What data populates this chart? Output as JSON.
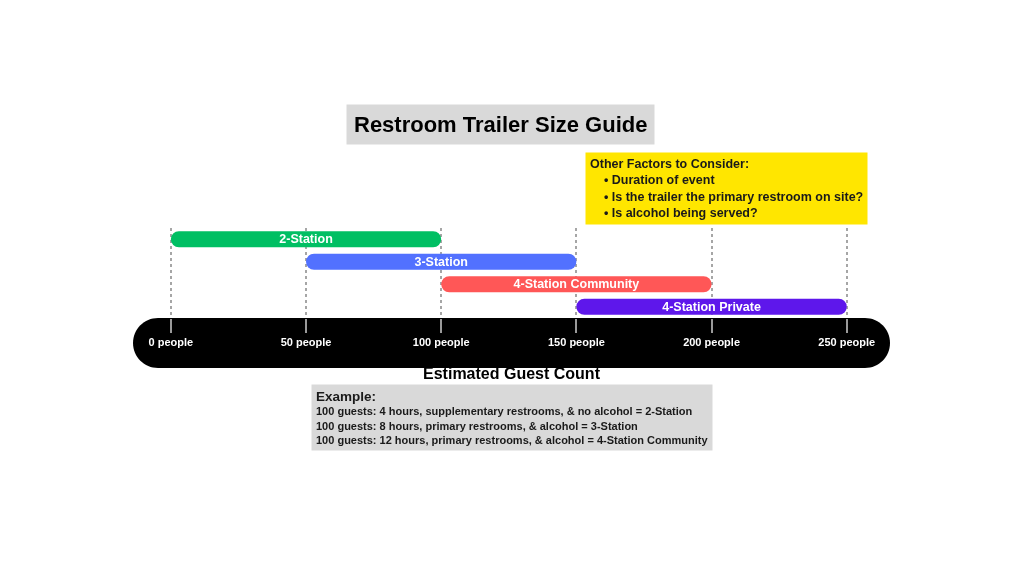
{
  "chart_data": {
    "type": "bar",
    "orientation": "horizontal",
    "title": "Restroom Trailer Size Guide",
    "xlabel": "Estimated Guest Count",
    "categories": [
      "2-Station",
      "3-Station",
      "4-Station Community",
      "4-Station Private"
    ],
    "base": [
      0,
      50,
      100,
      150
    ],
    "values": [
      100,
      100,
      100,
      100
    ],
    "colors": [
      "#00bf63",
      "#5271ff",
      "#ff5757",
      "#5e17eb"
    ],
    "xlim": [
      -14,
      266
    ],
    "xticks": [
      {
        "value": 0,
        "label": "0 people"
      },
      {
        "value": 50,
        "label": "50 people"
      },
      {
        "value": 100,
        "label": "100 people"
      },
      {
        "value": 150,
        "label": "150 people"
      },
      {
        "value": 200,
        "label": "200 people"
      },
      {
        "value": 250,
        "label": "250 people"
      }
    ],
    "grid": "x",
    "tick_labels": "x",
    "annotations": [
      "Other Factors to Consider:\n• Duration of event\n• Is the trailer the primary restroom on site?\n• Is alcohol being served?",
      "Example:\n100 guests: 4 hours, supplementary restrooms, & no alcohol = 2-Station\n100 guests: 8 hours, primary restrooms, & alcohol = 3-Station\n100 guests: 12 hours, primary restrooms, & alcohol = 4-Station Community"
    ]
  }
}
